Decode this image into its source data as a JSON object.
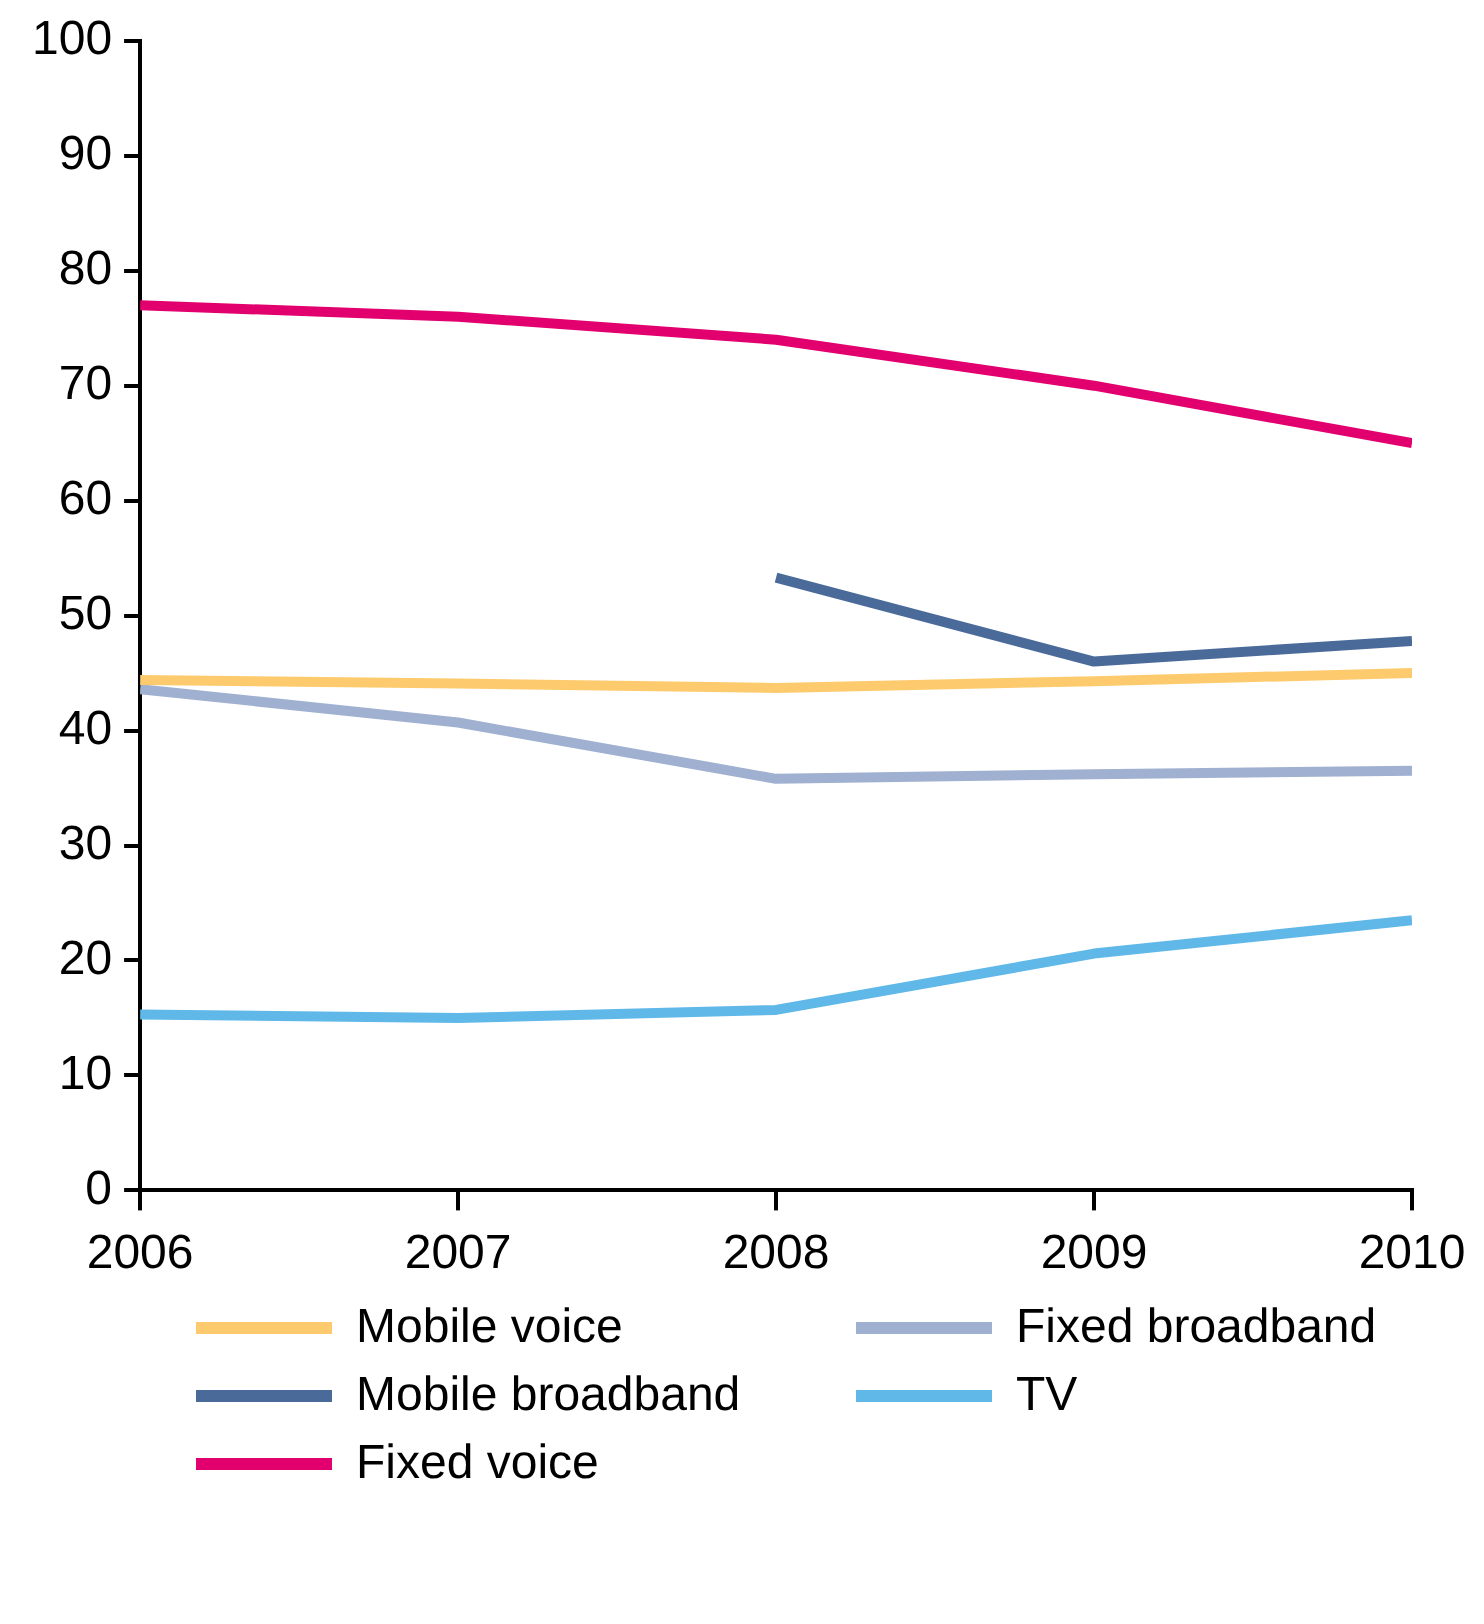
{
  "chart_data": {
    "type": "line",
    "x": [
      2006,
      2007,
      2008,
      2009,
      2010
    ],
    "xlim": [
      2006,
      2010
    ],
    "xticks": [
      2006,
      2007,
      2008,
      2009,
      2010
    ],
    "ylim": [
      0,
      100
    ],
    "yticks": [
      0,
      10,
      20,
      30,
      40,
      50,
      60,
      70,
      80,
      90,
      100
    ],
    "grid": false,
    "legend": "bottom",
    "marker": "none",
    "line_style": "solid",
    "series": [
      {
        "name": "Mobile voice",
        "color": "#fdcb6e",
        "values": [
          44.4,
          44.1,
          43.7,
          44.3,
          45
        ]
      },
      {
        "name": "Fixed broadband",
        "color": "#9fb0d0",
        "values": [
          43.6,
          40.7,
          35.8,
          36.2,
          36.5
        ]
      },
      {
        "name": "Mobile broadband",
        "color": "#4a6a9a",
        "values": [
          null,
          null,
          53.3,
          46,
          47.8
        ]
      },
      {
        "name": "TV",
        "color": "#5fb8e8",
        "values": [
          15.3,
          15,
          15.7,
          20.6,
          23.5
        ]
      },
      {
        "name": "Fixed voice",
        "color": "#e2006f",
        "values": [
          77,
          76,
          74,
          70,
          65
        ]
      }
    ]
  }
}
